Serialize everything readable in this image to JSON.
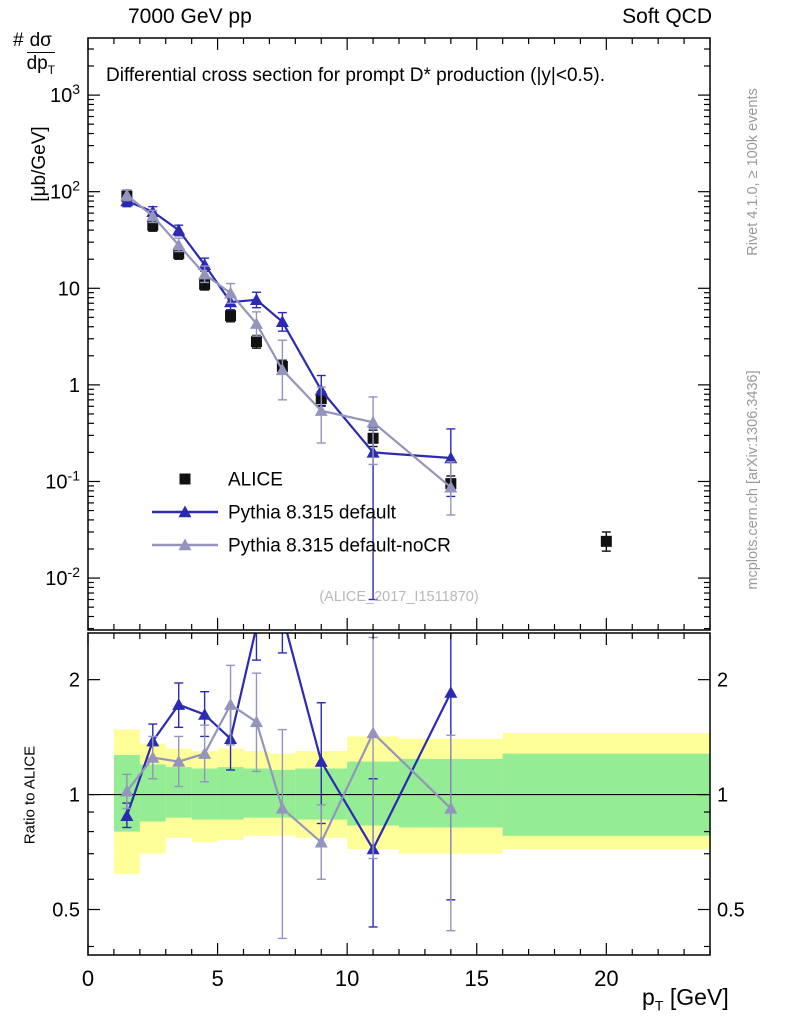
{
  "header": {
    "left_title": "7000 GeV pp",
    "right_title": "Soft QCD"
  },
  "plot": {
    "title": "Differential cross section for prompt D* production (|y|<0.5).",
    "watermark": "(ALICE_2017_I1511870)",
    "ylabel": {
      "prefix": "#",
      "numerator": "dσ",
      "denominator": "dp",
      "denominator_sub": "T",
      "unit": "[μb/GeV]"
    },
    "ratio_label": "Ratio to ALICE",
    "xlabel": {
      "base": "p",
      "sub": "T",
      "unit": " [GeV]"
    }
  },
  "sidebar": {
    "top_note": "Rivet 4.1.0, ≥ 100k events",
    "bottom_note": "mcplots.cern.ch [arXiv:1306.3436]"
  },
  "legend": [
    {
      "label": "ALICE",
      "marker": "square",
      "color": "#111111",
      "show_line": false
    },
    {
      "label": "Pythia 8.315 default",
      "marker": "triangle",
      "color": "#2b2bb2",
      "show_line": true
    },
    {
      "label": "Pythia 8.315 default-noCR",
      "marker": "triangle",
      "color": "#9494bc",
      "show_line": true
    }
  ],
  "colors": {
    "band_yellow": "#ffff99",
    "band_green": "#94ec94",
    "alice": "#111111",
    "pythia_default": "#2b2bb2",
    "pythia_nocr": "#9494bc",
    "side_text": "#999999",
    "watermark": "#b8b8b8"
  },
  "chart_data": {
    "type": "line",
    "title": "Differential cross section for prompt D* production (|y|<0.5).",
    "x": {
      "label": "p_T [GeV]",
      "min": 0,
      "max": 24,
      "major_ticks": [
        0,
        5,
        10,
        15,
        20
      ],
      "minor_step": 1
    },
    "main_panel": {
      "ylabel": "# dσ/dp_T [μb/GeV]",
      "yscale": "log",
      "ymin": 0.0029,
      "ymax": 3900,
      "decade_exponents": [
        3,
        2,
        1,
        0,
        -1,
        -2
      ],
      "series": [
        {
          "name": "ALICE",
          "color": "#111111",
          "marker": "square",
          "line": false,
          "x": [
            1.5,
            2.5,
            3.5,
            4.5,
            5.5,
            6.5,
            7.5,
            9,
            11,
            14,
            20
          ],
          "y": [
            90,
            45,
            23,
            11,
            5.2,
            2.8,
            1.55,
            0.72,
            0.28,
            0.095,
            0.024
          ],
          "ylo": [
            78,
            39,
            20,
            9.6,
            4.5,
            2.4,
            1.32,
            0.61,
            0.23,
            0.079,
            0.019
          ],
          "yhi": [
            104,
            52,
            26.5,
            12.6,
            6.0,
            3.25,
            1.8,
            0.85,
            0.34,
            0.114,
            0.03
          ]
        },
        {
          "name": "Pythia 8.315 default",
          "color": "#2b2bb2",
          "marker": "triangle",
          "line": true,
          "x": [
            1.5,
            2.5,
            3.5,
            4.5,
            5.5,
            6.5,
            7.5,
            9,
            11,
            14
          ],
          "y": [
            80,
            62,
            40,
            17.5,
            7.2,
            7.6,
            4.5,
            0.88,
            0.2,
            0.175
          ],
          "ylo": [
            70,
            55,
            35,
            15,
            6.0,
            6.3,
            3.6,
            0.6,
            0.006,
            0.07
          ],
          "yhi": [
            91,
            70,
            45,
            20.5,
            8.6,
            9.1,
            5.6,
            1.25,
            0.36,
            0.35
          ]
        },
        {
          "name": "Pythia 8.315 default-noCR",
          "color": "#9494bc",
          "marker": "triangle",
          "line": true,
          "x": [
            1.5,
            2.5,
            3.5,
            4.5,
            5.5,
            6.5,
            7.5,
            9,
            11,
            14
          ],
          "y": [
            92,
            56,
            28,
            14,
            8.9,
            4.3,
            1.43,
            0.54,
            0.41,
            0.087
          ],
          "ylo": [
            81,
            48,
            24,
            11.5,
            7.0,
            3.2,
            0.7,
            0.25,
            0.15,
            0.045
          ],
          "yhi": [
            104,
            64,
            33,
            17,
            11.2,
            5.7,
            2.9,
            0.95,
            0.75,
            0.16
          ]
        }
      ]
    },
    "ratio_panel": {
      "ylabel": "Ratio to ALICE",
      "yscale": "log",
      "ymin": 0.38,
      "ymax": 2.65,
      "major_ticks": [
        0.5,
        1,
        2
      ],
      "minor_ticks": [
        0.4,
        0.6,
        0.7,
        0.8,
        0.9
      ],
      "reference_line": 1,
      "bin_edges": [
        1,
        2,
        3,
        4,
        5,
        6,
        7,
        8,
        10,
        12,
        16,
        24
      ],
      "band_yellow_lo": [
        0.62,
        0.7,
        0.77,
        0.75,
        0.76,
        0.78,
        0.78,
        0.77,
        0.72,
        0.7,
        0.72
      ],
      "band_yellow_hi": [
        1.48,
        1.36,
        1.32,
        1.3,
        1.32,
        1.3,
        1.28,
        1.3,
        1.42,
        1.4,
        1.45
      ],
      "band_green_lo": [
        0.8,
        0.85,
        0.87,
        0.86,
        0.86,
        0.87,
        0.87,
        0.86,
        0.83,
        0.82,
        0.78
      ],
      "band_green_hi": [
        1.27,
        1.2,
        1.18,
        1.17,
        1.18,
        1.17,
        1.16,
        1.17,
        1.22,
        1.24,
        1.28
      ],
      "series": [
        {
          "name": "Pythia 8.315 default",
          "color": "#2b2bb2",
          "marker": "triangle",
          "line": true,
          "x": [
            1.5,
            2.5,
            3.5,
            4.5,
            5.5,
            6.5,
            7.5,
            9,
            11,
            14
          ],
          "y": [
            0.88,
            1.38,
            1.72,
            1.62,
            1.4,
            2.75,
            2.95,
            1.22,
            0.72,
            1.85
          ],
          "ylo": [
            0.82,
            1.24,
            1.5,
            1.42,
            1.16,
            2.25,
            2.35,
            0.84,
            0.45,
            0.53
          ],
          "yhi": [
            0.95,
            1.53,
            1.96,
            1.86,
            1.68,
            3.3,
            3.6,
            1.74,
            1.1,
            3.4
          ]
        },
        {
          "name": "Pythia 8.315 default-noCR",
          "color": "#9494bc",
          "marker": "triangle",
          "line": true,
          "x": [
            1.5,
            2.5,
            3.5,
            4.5,
            5.5,
            6.5,
            7.5,
            9,
            11,
            14
          ],
          "y": [
            1.02,
            1.25,
            1.22,
            1.28,
            1.72,
            1.55,
            0.92,
            0.75,
            1.45,
            0.92
          ],
          "ylo": [
            0.92,
            1.1,
            1.05,
            1.08,
            1.35,
            1.15,
            0.42,
            0.6,
            0.68,
            0.44
          ],
          "yhi": [
            1.13,
            1.42,
            1.42,
            1.52,
            2.18,
            2.08,
            1.48,
            0.94,
            2.58,
            1.43
          ]
        }
      ]
    }
  }
}
